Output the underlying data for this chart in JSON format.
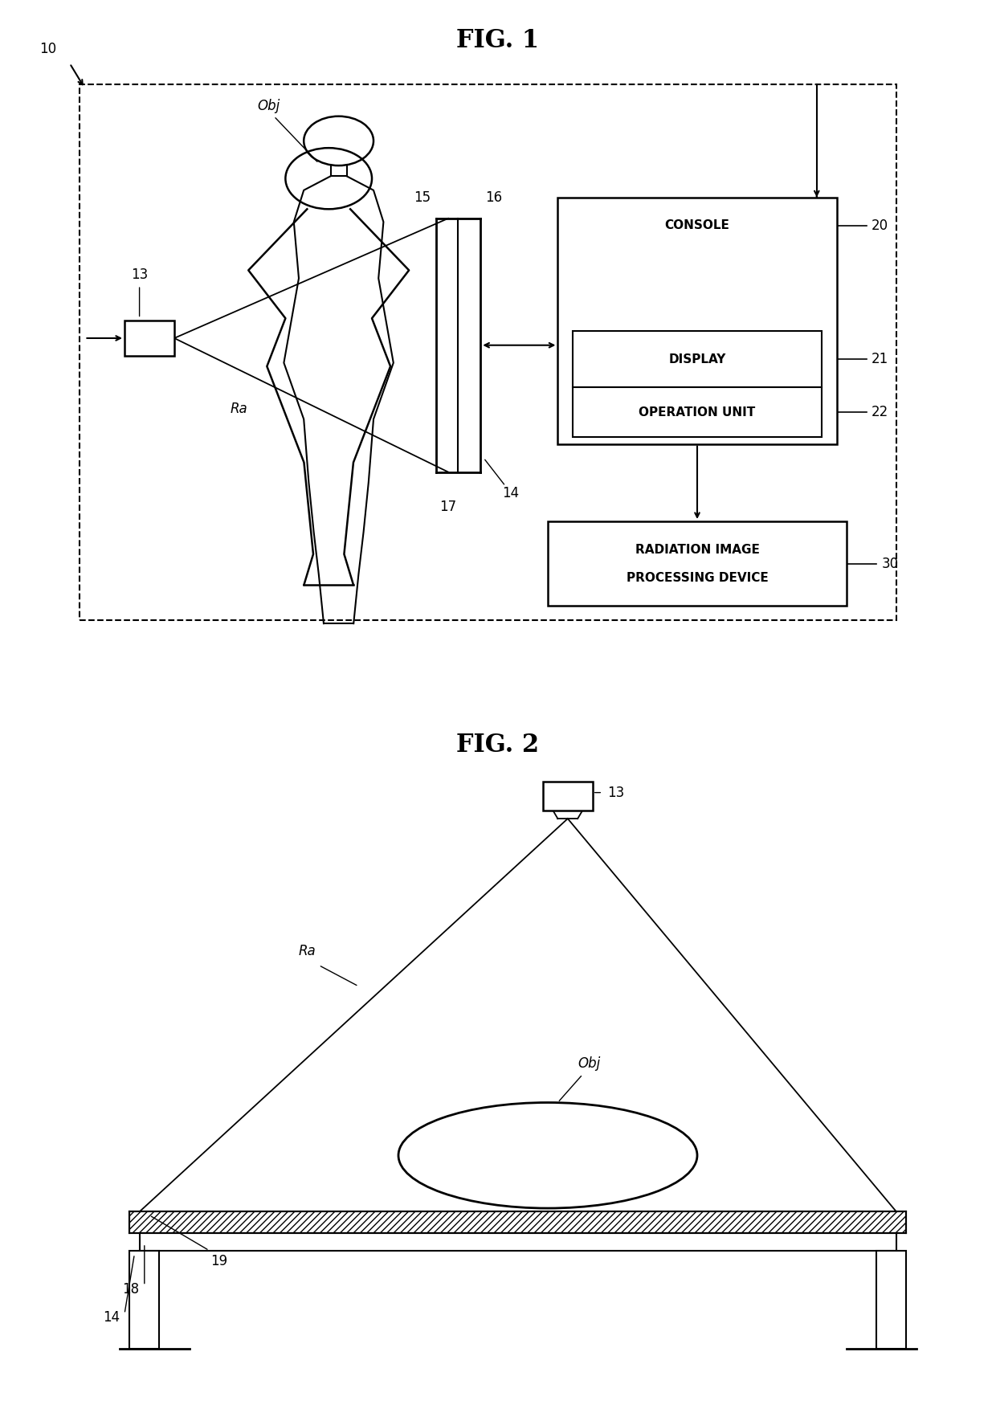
{
  "fig1_title": "FIG. 1",
  "fig2_title": "FIG. 2",
  "bg_color": "#ffffff",
  "line_color": "#000000",
  "label_10": "10",
  "label_13_fig1": "13",
  "label_14_fig1": "14",
  "label_15": "15",
  "label_16": "16",
  "label_17": "17",
  "label_Ra_fig1": "Ra",
  "label_Obj_fig1": "Obj",
  "label_20": "20",
  "label_21": "21",
  "label_22": "22",
  "label_30": "30",
  "console_text": "CONSOLE",
  "display_text": "DISPLAY",
  "operation_text": "OPERATION UNIT",
  "radiation_text1": "RADIATION IMAGE",
  "radiation_text2": "PROCESSING DEVICE",
  "label_13_fig2": "13",
  "label_Ra_fig2": "Ra",
  "label_Obj_fig2": "Obj",
  "label_18": "18",
  "label_19": "19",
  "label_14_fig2": "14"
}
